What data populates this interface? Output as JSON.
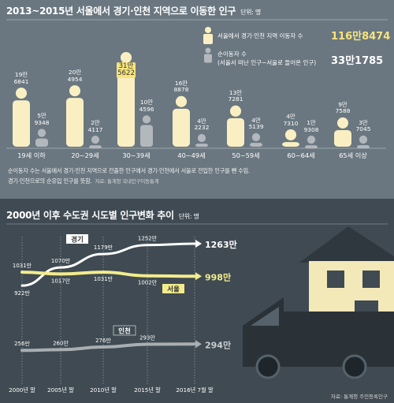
{
  "top": {
    "title": "2013~2015년 서울에서 경기·인천 지역으로 이동한 인구",
    "unit": "단위: 명",
    "legend": {
      "mover_label": "서울에서 경기·인천 지역 이동자 수",
      "mover_total": "116만8474",
      "net_label_line1": "순이동자 수",
      "net_label_line2": "(서울서 떠난 인구−서울로 들어온 인구)",
      "net_total": "33만1785"
    },
    "note_line1": "순이동자 수는 서울에서 경기·인천 지역으로 전출한 인구에서 경기·인천에서 서울로 전입한 인구를 뺀 수임.",
    "note_line2": "경기·인천으로의 순유입 인구를 뜻함.",
    "note_source": "자료: 통계청 국내인구이동통계",
    "colors": {
      "mover": "#f9efc2",
      "net": "#b3b8bd",
      "highlight": "#f7e47a"
    }
  },
  "bottom": {
    "title": "2000년 이후 수도권 시도별 인구변화 추이",
    "unit": "단위: 명",
    "source": "자료: 통계청 주민등록인구",
    "colors": {
      "gyeonggi": "#ffffff",
      "seoul": "#f3ec8c",
      "incheon": "#a9aeb2"
    }
  },
  "chart_data": [
    {
      "type": "bar",
      "title": "2013~2015년 서울에서 경기·인천 지역으로 이동한 인구",
      "unit": "명",
      "categories": [
        "19세 이하",
        "20~29세",
        "30~39세",
        "40~49세",
        "50~59세",
        "60~64세",
        "65세 이상"
      ],
      "series": [
        {
          "name": "서울에서 경기·인천 지역 이동자 수",
          "values": [
            196841,
            204954,
            315622,
            168878,
            137281,
            47310,
            97588
          ],
          "labels": [
            [
              "19만",
              "6841"
            ],
            [
              "20만",
              "4954"
            ],
            [
              "31만",
              "5622"
            ],
            [
              "16만",
              "8878"
            ],
            [
              "13만",
              "7281"
            ],
            [
              "4만",
              "7310"
            ],
            [
              "9만",
              "7588"
            ]
          ]
        },
        {
          "name": "순이동자 수",
          "values": [
            59348,
            24117,
            104596,
            42232,
            45139,
            19308,
            37045
          ],
          "labels": [
            [
              "5만",
              "9348"
            ],
            [
              "2만",
              "4117"
            ],
            [
              "10만",
              "4596"
            ],
            [
              "4만",
              "2232"
            ],
            [
              "4만",
              "5139"
            ],
            [
              "1만",
              "9308"
            ],
            [
              "3만",
              "7045"
            ]
          ]
        }
      ]
    },
    {
      "type": "line",
      "title": "2000년 이후 수도권 시도별 인구변화 추이",
      "unit": "명",
      "x": [
        "2000년 말",
        "2005년 말",
        "2010년 말",
        "2015년 말",
        "2016년 7월 말"
      ],
      "series": [
        {
          "name": "경기",
          "values": [
            922,
            1070,
            1179,
            1252,
            1263
          ],
          "point_labels": [
            "922만",
            "1070만",
            "1179만",
            "1252만",
            "1263만"
          ]
        },
        {
          "name": "서울",
          "values": [
            1031,
            1017,
            1031,
            1002,
            998
          ],
          "point_labels": [
            "1031만",
            "1017만",
            "1031만",
            "1002만",
            "998만"
          ]
        },
        {
          "name": "인천",
          "values": [
            256,
            260,
            276,
            293,
            294
          ],
          "point_labels": [
            "256만",
            "260만",
            "276만",
            "293만",
            "294만"
          ]
        }
      ]
    }
  ]
}
